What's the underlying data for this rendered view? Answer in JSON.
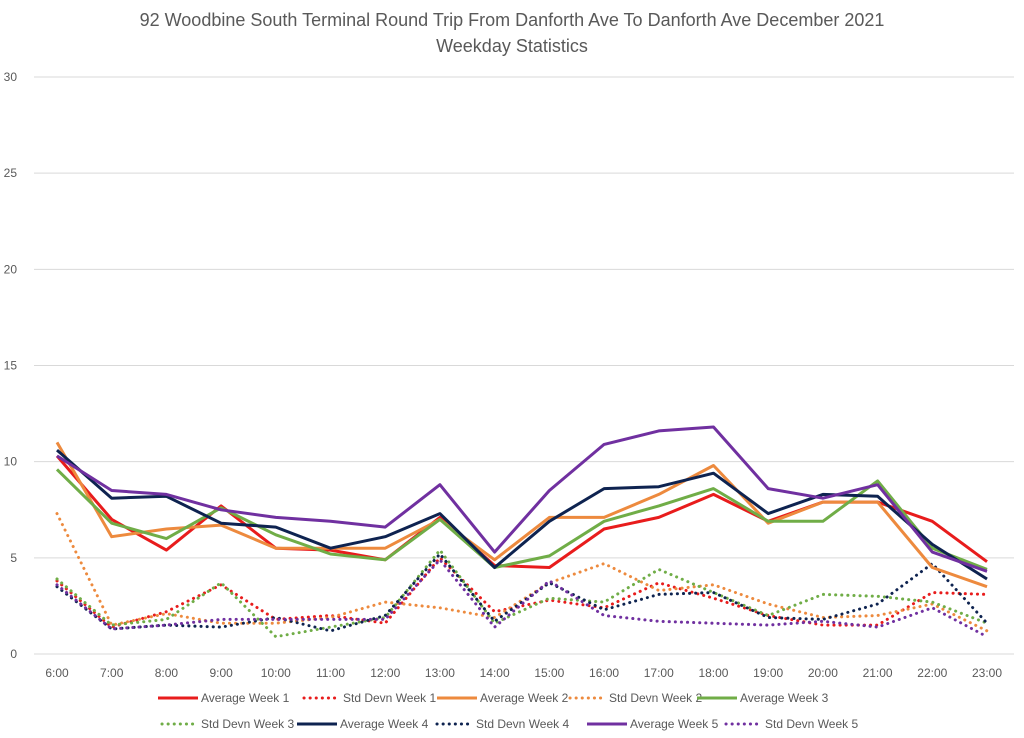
{
  "chart_data": {
    "type": "line",
    "title": "92 Woodbine South Terminal Round Trip From Danforth Ave To Danforth Ave December 2021",
    "subtitle": "Weekday Statistics",
    "xlabel": "",
    "ylabel": "",
    "ylim": [
      0,
      30
    ],
    "yticks": [
      "0",
      "5",
      "10",
      "15",
      "20",
      "25",
      "30"
    ],
    "grid": true,
    "legend_position": "bottom",
    "categories": [
      "6:00",
      "7:00",
      "8:00",
      "9:00",
      "10:00",
      "11:00",
      "12:00",
      "13:00",
      "14:00",
      "15:00",
      "16:00",
      "17:00",
      "18:00",
      "19:00",
      "20:00",
      "21:00",
      "22:00",
      "23:00"
    ],
    "series": [
      {
        "name": "Average Week 1",
        "color": "#e81c1c",
        "style": "solid",
        "values": [
          10.3,
          7.0,
          5.4,
          7.7,
          5.5,
          5.4,
          4.9,
          7.1,
          4.6,
          4.5,
          6.5,
          7.1,
          8.3,
          6.9,
          7.9,
          7.9,
          6.9,
          4.8
        ]
      },
      {
        "name": "Std Devn Week 1",
        "color": "#e81c1c",
        "style": "dotted",
        "values": [
          3.8,
          1.4,
          2.2,
          3.6,
          1.8,
          2.0,
          1.6,
          5.0,
          2.2,
          2.8,
          2.4,
          3.7,
          2.9,
          2.0,
          1.5,
          1.5,
          3.2,
          3.1
        ]
      },
      {
        "name": "Std Devn Week 2",
        "color": "#ed8a3e",
        "style": "dotted",
        "values": [
          7.3,
          1.5,
          2.1,
          1.6,
          1.6,
          1.9,
          2.7,
          2.4,
          1.9,
          3.7,
          4.7,
          3.3,
          3.6,
          2.6,
          1.9,
          2.0,
          2.6,
          1.2
        ]
      },
      {
        "name": "Average Week 2",
        "color": "#ed8a3e",
        "style": "solid",
        "values": [
          11.0,
          6.1,
          6.5,
          6.7,
          5.5,
          5.5,
          5.5,
          7.0,
          4.9,
          7.1,
          7.1,
          8.3,
          9.8,
          6.8,
          7.9,
          7.9,
          4.5,
          3.5
        ]
      },
      {
        "name": "Average Week 3",
        "color": "#70ad47",
        "style": "solid",
        "values": [
          9.6,
          6.8,
          6.0,
          7.6,
          6.2,
          5.2,
          4.9,
          7.0,
          4.5,
          5.1,
          6.9,
          7.7,
          8.6,
          6.9,
          6.9,
          9.0,
          5.5,
          4.4
        ]
      },
      {
        "name": "Std Devn Week 3",
        "color": "#70ad47",
        "style": "dotted",
        "values": [
          3.9,
          1.5,
          1.8,
          3.7,
          0.9,
          1.4,
          1.9,
          5.4,
          1.6,
          2.9,
          2.7,
          4.4,
          3.2,
          2.0,
          3.1,
          3.0,
          2.7,
          1.6
        ]
      },
      {
        "name": "Average Week 4",
        "color": "#0e2350",
        "style": "solid",
        "values": [
          10.6,
          8.1,
          8.2,
          6.8,
          6.6,
          5.5,
          6.1,
          7.3,
          4.5,
          6.9,
          8.6,
          8.7,
          9.4,
          7.3,
          8.3,
          8.2,
          5.7,
          3.9
        ]
      },
      {
        "name": "Std Devn Week 4",
        "color": "#0e2350",
        "style": "dotted",
        "values": [
          3.5,
          1.3,
          1.5,
          1.4,
          1.9,
          1.2,
          2.0,
          5.2,
          1.7,
          3.7,
          2.3,
          3.1,
          3.2,
          1.9,
          1.8,
          2.6,
          4.7,
          1.6
        ]
      },
      {
        "name": "Average Week 5",
        "color": "#7030a0",
        "style": "solid",
        "values": [
          10.3,
          8.5,
          8.3,
          7.5,
          7.1,
          6.9,
          6.6,
          8.8,
          5.3,
          8.5,
          10.9,
          11.6,
          11.8,
          8.6,
          8.1,
          8.8,
          5.3,
          4.3
        ]
      },
      {
        "name": "Std Devn Week 5",
        "color": "#7030a0",
        "style": "dotted",
        "values": [
          3.6,
          1.3,
          1.5,
          1.8,
          1.8,
          1.8,
          1.8,
          4.9,
          1.4,
          3.8,
          2.0,
          1.7,
          1.6,
          1.5,
          1.7,
          1.4,
          2.4,
          0.9
        ]
      }
    ],
    "legend_order": [
      "Average Week 1",
      "Std Devn Week 1",
      "Average Week 2",
      "Std Devn Week 2",
      "Average Week 3",
      "Std Devn Week 3",
      "Average Week 4",
      "Std Devn Week 4",
      "Average Week 5",
      "Std Devn Week 5"
    ]
  }
}
